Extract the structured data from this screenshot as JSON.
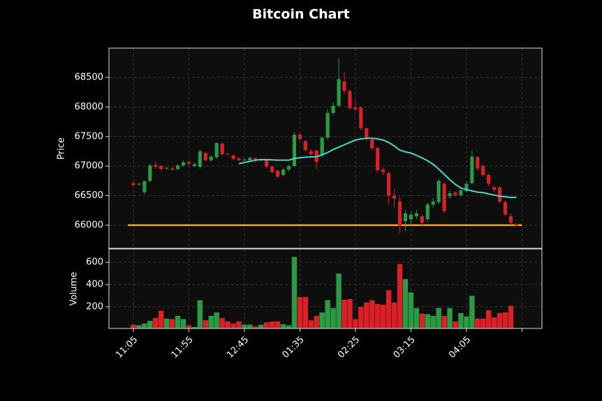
{
  "chart_data": {
    "type": "candlestick",
    "title": "Bitcoin Chart",
    "up_color": "#2a9a45",
    "down_color": "#dc2028",
    "grid": true,
    "x": [
      0,
      1,
      2,
      3,
      4,
      5,
      6,
      7,
      8,
      9,
      10,
      11,
      12,
      13,
      14,
      15,
      16,
      17,
      18,
      19,
      20,
      21,
      22,
      23,
      24,
      25,
      26,
      27,
      28,
      29,
      30,
      31,
      32,
      33,
      34,
      35,
      36,
      37,
      38,
      39,
      40,
      41,
      42,
      43,
      44,
      45,
      46,
      47,
      48,
      49,
      50,
      51,
      52,
      53,
      54,
      55,
      56,
      57,
      58,
      59,
      60,
      61,
      62,
      63,
      64,
      65,
      66,
      67,
      68,
      69
    ],
    "xlim": [
      -4.4,
      73.6
    ],
    "xticks": [
      {
        "value": 0,
        "label": "11:05"
      },
      {
        "value": 10,
        "label": "11:55"
      },
      {
        "value": 20,
        "label": "12:45"
      },
      {
        "value": 30,
        "label": "01:35"
      },
      {
        "value": 40,
        "label": "02:25"
      },
      {
        "value": 50,
        "label": "03:15"
      },
      {
        "value": 60,
        "label": "04:05"
      },
      {
        "value": 70,
        "label": null
      }
    ],
    "price": {
      "label": "Price",
      "ylim": [
        65610,
        68995
      ],
      "yticks": [
        66000,
        66500,
        67000,
        67500,
        68000,
        68500
      ],
      "open": [
        66710,
        66690,
        66560,
        66750,
        67020,
        67000,
        66960,
        66960,
        66950,
        67010,
        67070,
        67000,
        66990,
        67220,
        67100,
        67150,
        67380,
        67210,
        67180,
        67130,
        67100,
        67100,
        67130,
        67100,
        67100,
        66990,
        66920,
        66850,
        66940,
        67000,
        67530,
        67420,
        67250,
        67260,
        67180,
        67480,
        67900,
        68020,
        68430,
        68270,
        67990,
        67990,
        67640,
        67450,
        67310,
        66940,
        66880,
        66500,
        66400,
        66070,
        66100,
        66150,
        66150,
        66100,
        66350,
        66390,
        66700,
        66490,
        66550,
        66510,
        66580,
        66710,
        67150,
        67000,
        66850,
        66640,
        66640,
        66390,
        66150,
        66010
      ],
      "high": [
        66740,
        66720,
        66760,
        67040,
        67080,
        67020,
        66990,
        66990,
        67030,
        67090,
        67080,
        67060,
        67280,
        67240,
        67180,
        67400,
        67400,
        67220,
        67190,
        67150,
        67130,
        67160,
        67140,
        67130,
        67120,
        67010,
        66940,
        66970,
        67020,
        67580,
        67560,
        67440,
        67290,
        67280,
        67500,
        67960,
        68080,
        68820,
        68600,
        68300,
        68120,
        68010,
        67650,
        67470,
        67320,
        66980,
        66900,
        66620,
        66480,
        66260,
        66220,
        66260,
        66180,
        66380,
        66460,
        66780,
        66720,
        66580,
        66570,
        66620,
        66740,
        67260,
        67180,
        67030,
        66880,
        66680,
        66660,
        66420,
        66200,
        66030
      ],
      "low": [
        66650,
        66670,
        66520,
        66730,
        66950,
        66920,
        66940,
        66920,
        66930,
        66990,
        67010,
        66980,
        66960,
        67080,
        67080,
        67120,
        67180,
        67180,
        67100,
        67080,
        67080,
        67090,
        67060,
        67080,
        66960,
        66880,
        66790,
        66830,
        66910,
        66980,
        67420,
        67250,
        67170,
        66950,
        67150,
        67450,
        67860,
        68000,
        68220,
        67950,
        67930,
        67600,
        67420,
        67270,
        66890,
        66850,
        66350,
        66300,
        65860,
        65900,
        66000,
        66100,
        65980,
        66050,
        66300,
        66360,
        66200,
        66450,
        66480,
        66480,
        66560,
        66690,
        66920,
        66820,
        66660,
        66560,
        66380,
        66150,
        66000,
        65970
      ],
      "close": [
        66680,
        66700,
        66740,
        67010,
        66990,
        66950,
        66970,
        66940,
        67010,
        67060,
        67040,
        67030,
        67250,
        67100,
        67160,
        67390,
        67200,
        67200,
        67120,
        67100,
        67110,
        67140,
        67090,
        67110,
        66990,
        66900,
        66820,
        66940,
        67000,
        67530,
        67460,
        67270,
        67200,
        67070,
        67480,
        67900,
        68020,
        68470,
        68270,
        67980,
        67960,
        67640,
        67460,
        67300,
        66930,
        66900,
        66500,
        66450,
        65990,
        66200,
        66180,
        66200,
        66040,
        66350,
        66400,
        66750,
        66240,
        66540,
        66510,
        66590,
        66700,
        67160,
        66960,
        66850,
        66700,
        66600,
        66400,
        66180,
        66040,
        65990
      ],
      "ma": {
        "color": "#48d8c8",
        "values": [
          null,
          null,
          null,
          null,
          null,
          null,
          null,
          null,
          null,
          null,
          null,
          null,
          null,
          null,
          null,
          null,
          null,
          null,
          null,
          67040,
          67060,
          67080,
          67100,
          67110,
          67110,
          67105,
          67100,
          67100,
          67100,
          67130,
          67140,
          67150,
          67155,
          67160,
          67190,
          67230,
          67280,
          67320,
          67360,
          67400,
          67440,
          67460,
          67470,
          67470,
          67460,
          67440,
          67400,
          67340,
          67270,
          67240,
          67220,
          67180,
          67140,
          67090,
          67030,
          66950,
          66860,
          66770,
          66690,
          66630,
          66600,
          66580,
          66560,
          66550,
          66530,
          66510,
          66490,
          66480,
          66470,
          66470
        ]
      },
      "hline": {
        "value": 66000,
        "color": "#f5a623"
      }
    },
    "volume": {
      "label": "Volume",
      "ylim": [
        5,
        720
      ],
      "yticks": [
        200,
        400,
        600
      ],
      "values": [
        40,
        35,
        50,
        75,
        100,
        165,
        95,
        90,
        120,
        90,
        35,
        20,
        260,
        80,
        120,
        150,
        100,
        70,
        50,
        70,
        40,
        40,
        25,
        40,
        60,
        70,
        70,
        45,
        35,
        650,
        290,
        290,
        80,
        120,
        150,
        260,
        190,
        500,
        265,
        270,
        90,
        200,
        240,
        260,
        225,
        220,
        350,
        240,
        585,
        450,
        330,
        190,
        140,
        135,
        120,
        190,
        120,
        190,
        70,
        145,
        115,
        300,
        95,
        95,
        170,
        105,
        145,
        150,
        210,
        10
      ]
    }
  }
}
